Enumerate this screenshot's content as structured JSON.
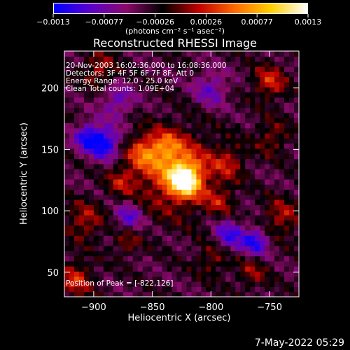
{
  "colorbar": {
    "ticks": [
      "-0.0013",
      "-0.00077",
      "-0.00026",
      "0.00026",
      "0.00077",
      "0.0013"
    ],
    "units": "(photons cm⁻² s⁻¹ asec⁻²)",
    "colors": [
      "#0000ff",
      "#5a00cc",
      "#8a0a6a",
      "#000000",
      "#c00000",
      "#ff6a00",
      "#ffd000",
      "#ffffff"
    ]
  },
  "title": "Reconstructed RHESSI Image",
  "info": {
    "line1": "20-Nov-2003 16:02:36.000 to 16:08:36.000",
    "line2": "Detectors: 3F 4F 5F 6F 7F 8F, Att 0",
    "line3": "Energy Range: 12.0 - 25.0 keV",
    "line4": "Clean     Total counts: 1.09E+04"
  },
  "peak_label": "Position of Peak = [-822,126]",
  "footer": "7-May-2022 05:29",
  "chart_data": {
    "type": "heatmap",
    "title": "Reconstructed RHESSI Image",
    "xlabel": "Heliocentric X (arcsec)",
    "ylabel": "Heliocentric Y (arcsec)",
    "xlim": [
      -925,
      -725
    ],
    "ylim": [
      30,
      230
    ],
    "x_ticks": [
      -900,
      -850,
      -800,
      -750
    ],
    "x_tick_labels": [
      "-900",
      "-850",
      "-800",
      "-750"
    ],
    "y_ticks": [
      50,
      100,
      150,
      200
    ],
    "y_tick_labels": [
      "50",
      "100",
      "150",
      "200"
    ],
    "color_range": [
      -0.0013,
      0.0013
    ],
    "peak": [
      -822,
      126
    ],
    "sources": [
      {
        "x": -822,
        "y": 126,
        "amp": 0.0013,
        "sigma": 9
      },
      {
        "x": -830,
        "y": 132,
        "amp": 0.00085,
        "sigma": 22
      },
      {
        "x": -858,
        "y": 148,
        "amp": 0.0006,
        "sigma": 10
      },
      {
        "x": -838,
        "y": 152,
        "amp": 0.0005,
        "sigma": 9
      },
      {
        "x": -876,
        "y": 125,
        "amp": 0.00045,
        "sigma": 9
      },
      {
        "x": -785,
        "y": 140,
        "amp": 0.00045,
        "sigma": 10
      },
      {
        "x": -792,
        "y": 108,
        "amp": 0.0004,
        "sigma": 9
      },
      {
        "x": -908,
        "y": 92,
        "amp": 0.0005,
        "sigma": 11
      },
      {
        "x": -915,
        "y": 45,
        "amp": 0.0006,
        "sigma": 10
      },
      {
        "x": -740,
        "y": 95,
        "amp": 0.0005,
        "sigma": 11
      },
      {
        "x": -748,
        "y": 160,
        "amp": 0.0004,
        "sigma": 10
      },
      {
        "x": -750,
        "y": 205,
        "amp": 0.0006,
        "sigma": 10
      },
      {
        "x": -895,
        "y": 215,
        "amp": 0.0005,
        "sigma": 10
      },
      {
        "x": -872,
        "y": 75,
        "amp": 0.0004,
        "sigma": 8
      },
      {
        "x": -798,
        "y": 62,
        "amp": 0.0004,
        "sigma": 10
      },
      {
        "x": -765,
        "y": 50,
        "amp": 0.0004,
        "sigma": 9
      },
      {
        "x": -890,
        "y": 155,
        "amp": -0.0009,
        "sigma": 9
      },
      {
        "x": -905,
        "y": 160,
        "amp": -0.0008,
        "sigma": 8
      },
      {
        "x": -762,
        "y": 75,
        "amp": -0.0008,
        "sigma": 8
      },
      {
        "x": -785,
        "y": 80,
        "amp": -0.0007,
        "sigma": 9
      },
      {
        "x": -870,
        "y": 95,
        "amp": -0.0006,
        "sigma": 8
      },
      {
        "x": -880,
        "y": 190,
        "amp": -0.0005,
        "sigma": 10
      },
      {
        "x": -800,
        "y": 200,
        "amp": -0.0005,
        "sigma": 10
      }
    ]
  }
}
